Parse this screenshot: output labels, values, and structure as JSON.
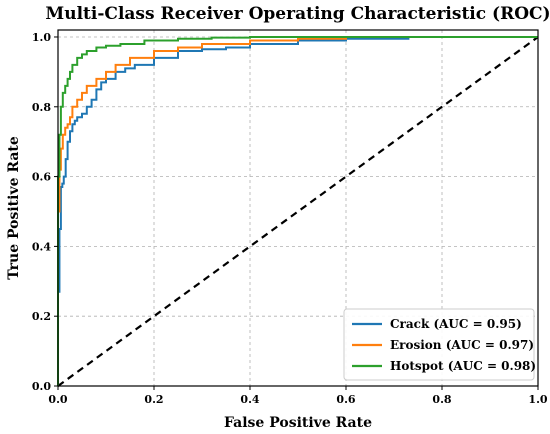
{
  "chart_data": {
    "type": "line",
    "title": "Multi-Class Receiver Operating Characteristic (ROC)",
    "xlabel": "False Positive Rate",
    "ylabel": "True Positive Rate",
    "xlim": [
      0,
      1
    ],
    "ylim": [
      0,
      1.02
    ],
    "x_ticks": [
      "0.0",
      "0.2",
      "0.4",
      "0.6",
      "0.8",
      "1.0"
    ],
    "y_ticks": [
      "0.0",
      "0.2",
      "0.4",
      "0.6",
      "0.8",
      "1.0"
    ],
    "grid": true,
    "legend_position": "lower-right",
    "reference_line": {
      "x": [
        0,
        1
      ],
      "y": [
        0,
        1
      ],
      "color": "#000000",
      "style": "dashed"
    },
    "series": [
      {
        "name": "Crack (AUC = 0.95)",
        "color": "#1f77b4",
        "x": [
          0,
          0,
          0.003,
          0.003,
          0.006,
          0.006,
          0.009,
          0.009,
          0.012,
          0.012,
          0.016,
          0.016,
          0.02,
          0.02,
          0.025,
          0.025,
          0.03,
          0.03,
          0.035,
          0.035,
          0.04,
          0.04,
          0.05,
          0.05,
          0.06,
          0.06,
          0.07,
          0.07,
          0.08,
          0.08,
          0.09,
          0.09,
          0.1,
          0.1,
          0.12,
          0.12,
          0.14,
          0.14,
          0.16,
          0.16,
          0.2,
          0.2,
          0.25,
          0.25,
          0.3,
          0.3,
          0.35,
          0.35,
          0.4,
          0.4,
          0.5,
          0.5,
          0.6,
          0.6,
          0.73,
          0.73,
          1.0
        ],
        "y": [
          0,
          0.27,
          0.27,
          0.45,
          0.45,
          0.57,
          0.57,
          0.58,
          0.58,
          0.6,
          0.6,
          0.65,
          0.65,
          0.7,
          0.7,
          0.73,
          0.73,
          0.75,
          0.75,
          0.76,
          0.76,
          0.77,
          0.77,
          0.78,
          0.78,
          0.8,
          0.8,
          0.82,
          0.82,
          0.85,
          0.85,
          0.87,
          0.87,
          0.88,
          0.88,
          0.9,
          0.9,
          0.91,
          0.91,
          0.92,
          0.92,
          0.94,
          0.94,
          0.96,
          0.96,
          0.965,
          0.965,
          0.97,
          0.97,
          0.98,
          0.98,
          0.99,
          0.99,
          0.995,
          0.995,
          1.0,
          1.0
        ]
      },
      {
        "name": "Erosion (AUC = 0.97)",
        "color": "#ff7f0e",
        "x": [
          0,
          0,
          0.003,
          0.003,
          0.006,
          0.006,
          0.01,
          0.01,
          0.015,
          0.015,
          0.02,
          0.02,
          0.025,
          0.025,
          0.03,
          0.03,
          0.04,
          0.04,
          0.05,
          0.05,
          0.06,
          0.06,
          0.08,
          0.08,
          0.1,
          0.1,
          0.12,
          0.12,
          0.15,
          0.15,
          0.2,
          0.2,
          0.25,
          0.25,
          0.3,
          0.3,
          0.4,
          0.4,
          0.5,
          0.5,
          0.6,
          0.6,
          1.0
        ],
        "y": [
          0,
          0.5,
          0.5,
          0.62,
          0.62,
          0.68,
          0.68,
          0.72,
          0.72,
          0.74,
          0.74,
          0.75,
          0.75,
          0.77,
          0.77,
          0.8,
          0.8,
          0.82,
          0.82,
          0.84,
          0.84,
          0.86,
          0.86,
          0.88,
          0.88,
          0.9,
          0.9,
          0.92,
          0.92,
          0.94,
          0.94,
          0.96,
          0.96,
          0.97,
          0.97,
          0.98,
          0.98,
          0.99,
          0.99,
          0.995,
          0.995,
          1.0,
          1.0
        ]
      },
      {
        "name": "Hotspot (AUC = 0.98)",
        "color": "#2ca02c",
        "x": [
          0,
          0,
          0.003,
          0.003,
          0.006,
          0.006,
          0.01,
          0.01,
          0.015,
          0.015,
          0.02,
          0.02,
          0.025,
          0.025,
          0.03,
          0.03,
          0.04,
          0.04,
          0.05,
          0.05,
          0.06,
          0.06,
          0.08,
          0.08,
          0.1,
          0.1,
          0.13,
          0.13,
          0.18,
          0.18,
          0.25,
          0.25,
          0.32,
          0.32,
          0.4,
          0.4,
          0.5,
          0.5,
          1.0
        ],
        "y": [
          0,
          0.6,
          0.6,
          0.72,
          0.72,
          0.8,
          0.8,
          0.84,
          0.84,
          0.86,
          0.86,
          0.88,
          0.88,
          0.9,
          0.9,
          0.92,
          0.92,
          0.94,
          0.94,
          0.95,
          0.95,
          0.96,
          0.96,
          0.97,
          0.97,
          0.975,
          0.975,
          0.98,
          0.98,
          0.99,
          0.99,
          0.995,
          0.995,
          0.998,
          0.998,
          1.0,
          1.0,
          1.0,
          1.0
        ]
      }
    ]
  }
}
